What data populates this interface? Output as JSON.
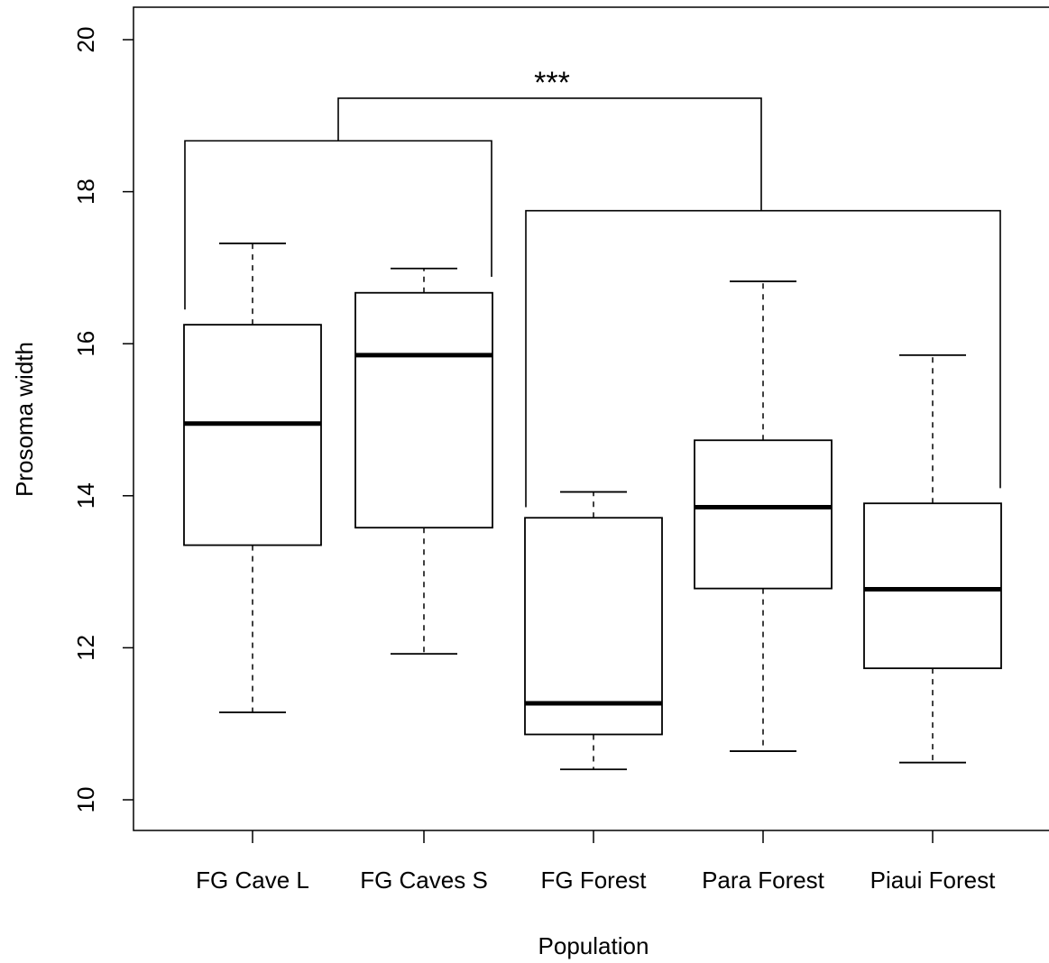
{
  "chart_data": {
    "type": "box",
    "title": "",
    "xlabel": "Population",
    "ylabel": "Prosoma width",
    "ylim": [
      9.6,
      20.4
    ],
    "yticks": [
      10,
      12,
      14,
      16,
      18,
      20
    ],
    "categories": [
      "FG Cave L",
      "FG Caves S",
      "FG Forest",
      "Para Forest",
      "Piaui Forest"
    ],
    "boxes": [
      {
        "name": "FG Cave L",
        "min": 11.15,
        "q1": 13.35,
        "median": 14.95,
        "q3": 16.25,
        "max": 17.32
      },
      {
        "name": "FG Caves S",
        "min": 11.92,
        "q1": 13.58,
        "median": 15.85,
        "q3": 16.67,
        "max": 16.99
      },
      {
        "name": "FG Forest",
        "min": 10.4,
        "q1": 10.86,
        "median": 11.27,
        "q3": 13.71,
        "max": 14.05
      },
      {
        "name": "Para Forest",
        "min": 10.64,
        "q1": 12.78,
        "median": 13.85,
        "q3": 14.73,
        "max": 16.82
      },
      {
        "name": "Piaui Forest",
        "min": 10.49,
        "q1": 11.73,
        "median": 12.77,
        "q3": 13.9,
        "max": 15.85
      }
    ],
    "grid": false,
    "annotations": [
      {
        "type": "bracket",
        "label": "",
        "from": 0,
        "to": 1,
        "y": 18.67,
        "left_end_y": 16.45,
        "right_end_y": 16.88
      },
      {
        "type": "bracket",
        "label": "",
        "from": 2,
        "to": 4,
        "y": 17.75,
        "left_end_y": 13.85,
        "right_end_y": 14.1
      },
      {
        "type": "significance",
        "label": "***",
        "y": 19.23
      }
    ]
  }
}
